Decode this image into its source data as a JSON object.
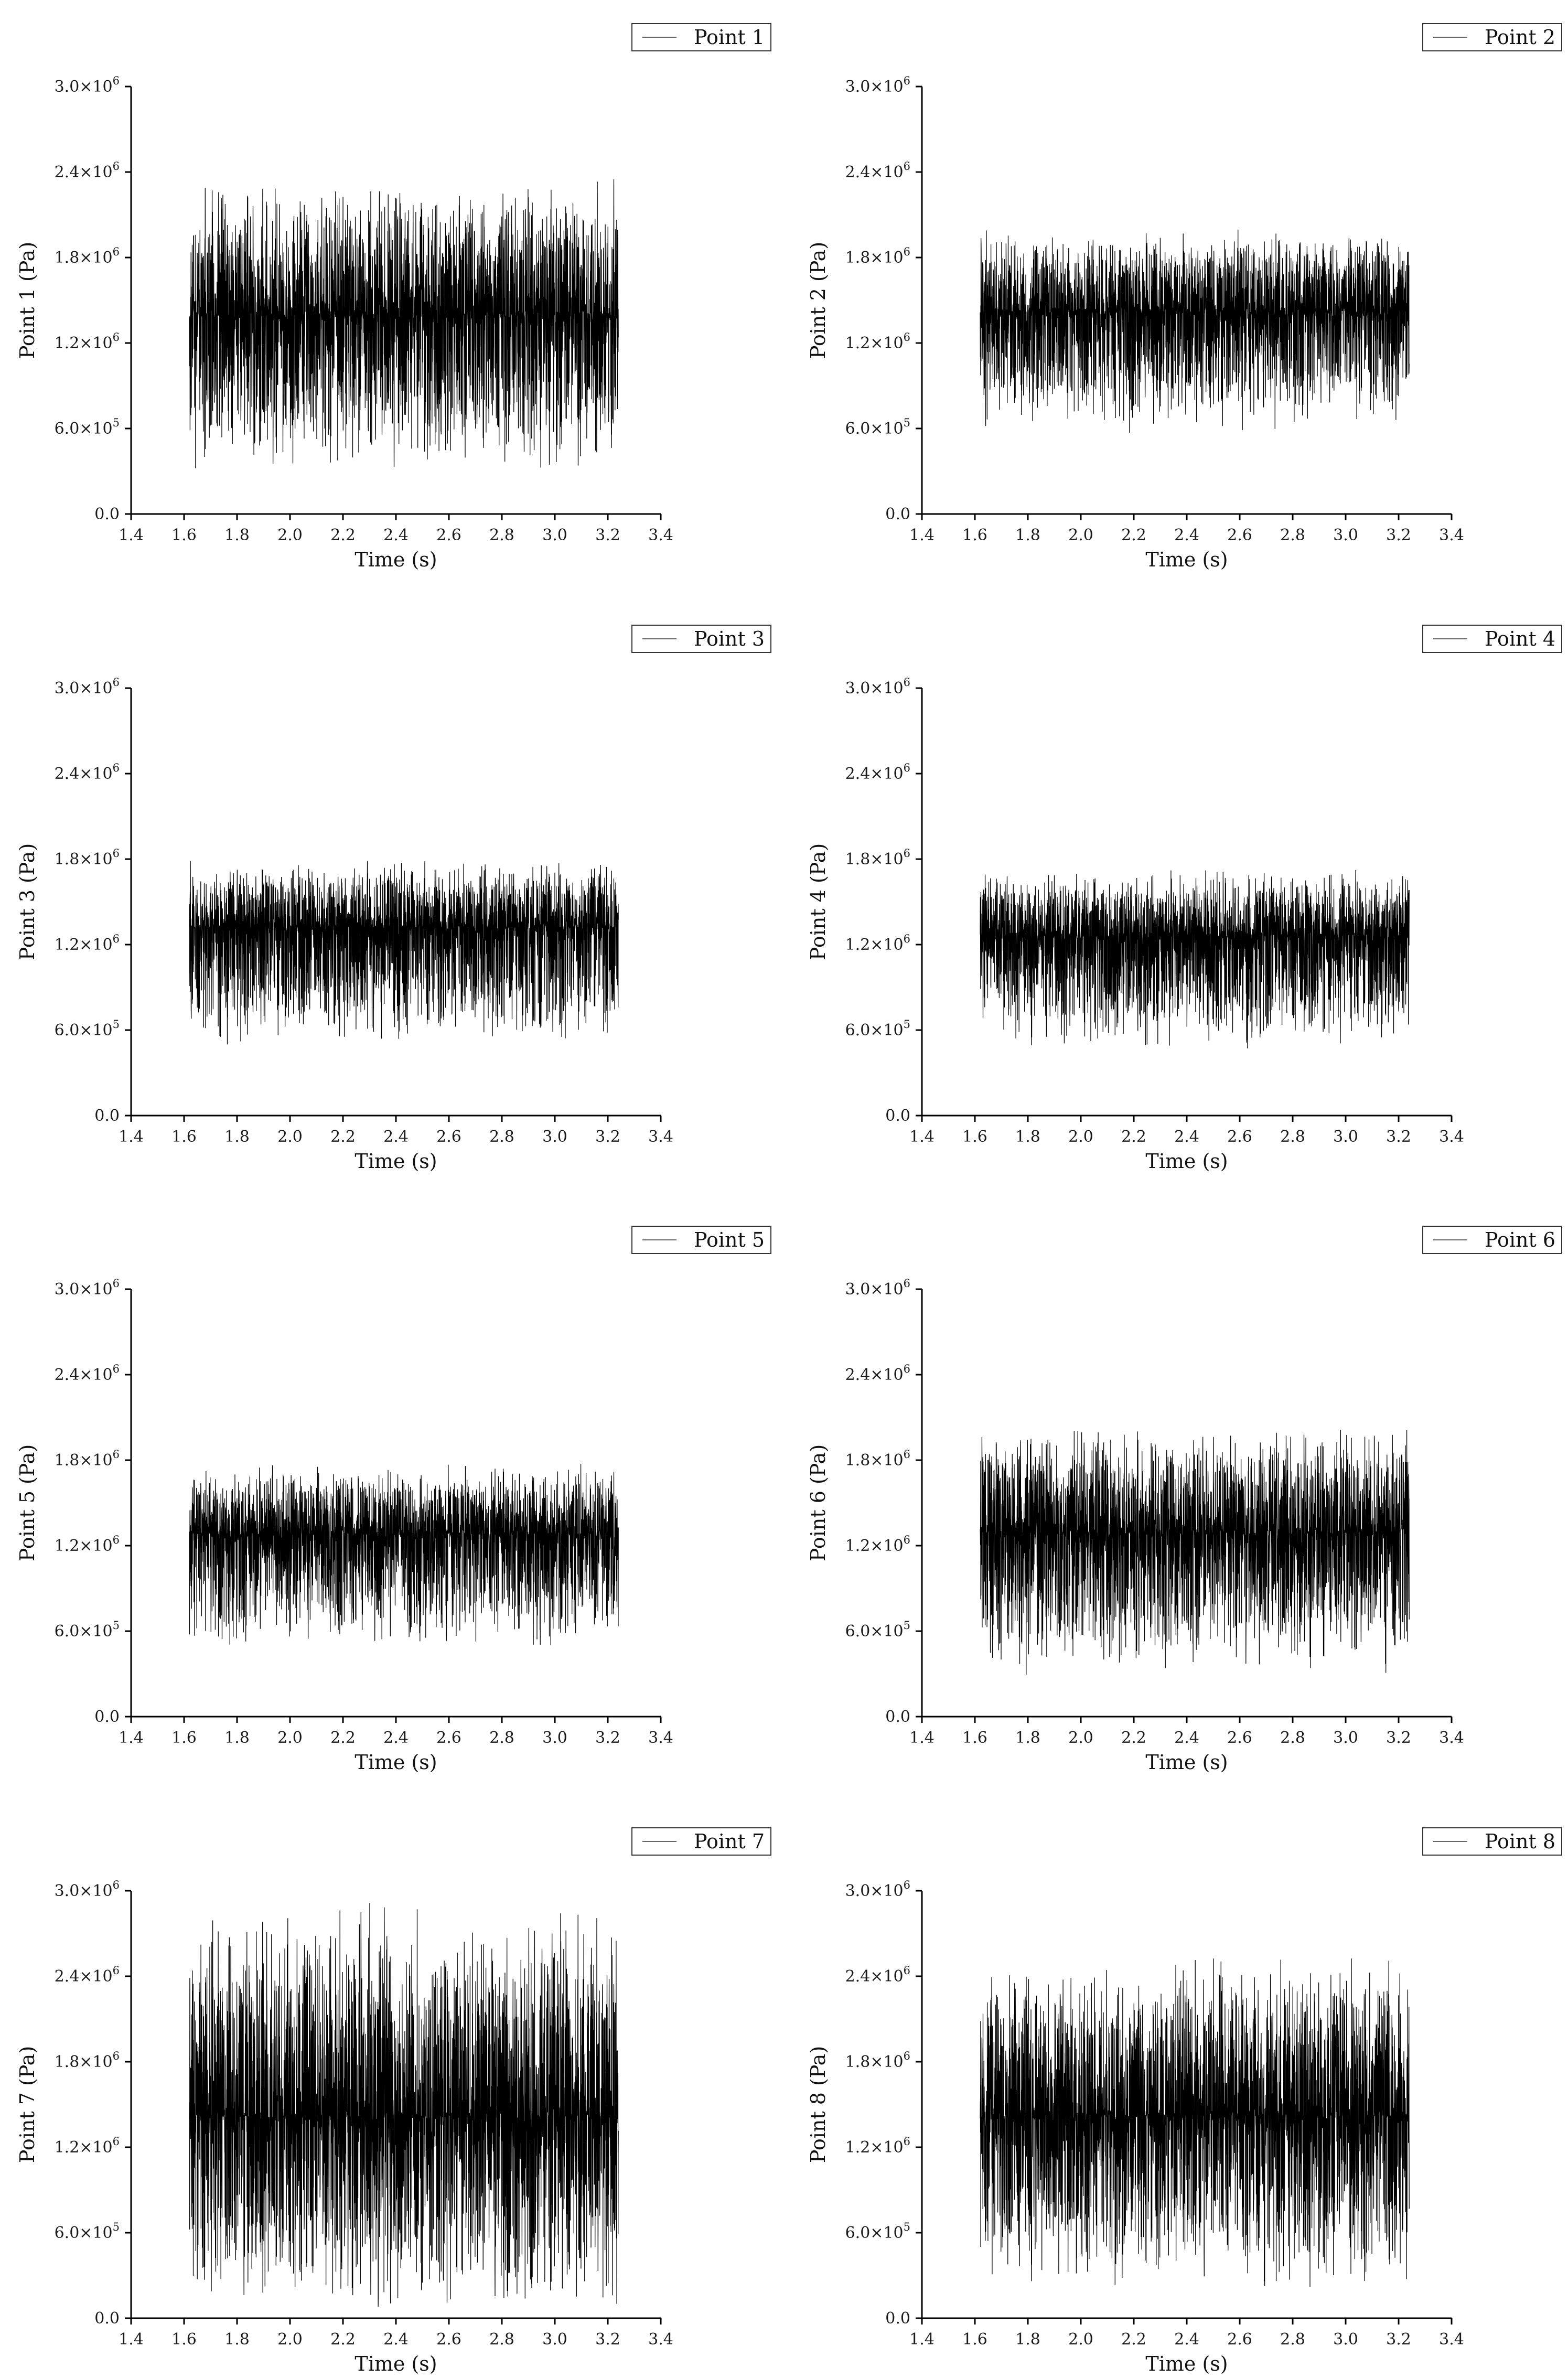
{
  "chart_data": [
    {
      "type": "line",
      "panel": 1,
      "legend": "Point 1",
      "legend_position": "top-right",
      "xlabel": "Time (s)",
      "ylabel": "Point 1 (Pa)",
      "xlim": [
        1.4,
        3.4
      ],
      "ylim": [
        0,
        3000000
      ],
      "x_ticks": [
        "1.4",
        "1.6",
        "1.8",
        "2.0",
        "2.2",
        "2.4",
        "2.6",
        "2.8",
        "3.0",
        "3.2",
        "3.4"
      ],
      "y_ticks": [
        {
          "value": 0,
          "mantissa": "0.0",
          "exp": ""
        },
        {
          "value": 600000,
          "mantissa": "6.0×10",
          "exp": "5"
        },
        {
          "value": 1200000,
          "mantissa": "1.2×10",
          "exp": "6"
        },
        {
          "value": 1800000,
          "mantissa": "1.8×10",
          "exp": "6"
        },
        {
          "value": 2400000,
          "mantissa": "2.4×10",
          "exp": "6"
        },
        {
          "value": 3000000,
          "mantissa": "3.0×10",
          "exp": "6"
        }
      ],
      "series": [
        {
          "name": "Point 1",
          "x_range": [
            1.62,
            3.24
          ],
          "mean": 1400000,
          "envelope_max": 2350000,
          "envelope_min": 280000
        }
      ]
    },
    {
      "type": "line",
      "panel": 2,
      "legend": "Point 2",
      "legend_position": "top-right",
      "xlabel": "Time (s)",
      "ylabel": "Point 2 (Pa)",
      "xlim": [
        1.4,
        3.4
      ],
      "ylim": [
        0,
        3000000
      ],
      "x_ticks": [
        "1.4",
        "1.6",
        "1.8",
        "2.0",
        "2.2",
        "2.4",
        "2.6",
        "2.8",
        "3.0",
        "3.2",
        "3.4"
      ],
      "y_ticks": [
        {
          "value": 0,
          "mantissa": "0.0",
          "exp": ""
        },
        {
          "value": 600000,
          "mantissa": "6.0×10",
          "exp": "5"
        },
        {
          "value": 1200000,
          "mantissa": "1.2×10",
          "exp": "6"
        },
        {
          "value": 1800000,
          "mantissa": "1.8×10",
          "exp": "6"
        },
        {
          "value": 2400000,
          "mantissa": "2.4×10",
          "exp": "6"
        },
        {
          "value": 3000000,
          "mantissa": "3.0×10",
          "exp": "6"
        }
      ],
      "series": [
        {
          "name": "Point 2",
          "x_range": [
            1.62,
            3.24
          ],
          "mean": 1420000,
          "envelope_max": 2000000,
          "envelope_min": 560000
        }
      ]
    },
    {
      "type": "line",
      "panel": 3,
      "legend": "Point 3",
      "legend_position": "top-right",
      "xlabel": "Time (s)",
      "ylabel": "Point 3 (Pa)",
      "xlim": [
        1.4,
        3.4
      ],
      "ylim": [
        0,
        3000000
      ],
      "x_ticks": [
        "1.4",
        "1.6",
        "1.8",
        "2.0",
        "2.2",
        "2.4",
        "2.6",
        "2.8",
        "3.0",
        "3.2",
        "3.4"
      ],
      "y_ticks": [
        {
          "value": 0,
          "mantissa": "0.0",
          "exp": ""
        },
        {
          "value": 600000,
          "mantissa": "6.0×10",
          "exp": "5"
        },
        {
          "value": 1200000,
          "mantissa": "1.2×10",
          "exp": "6"
        },
        {
          "value": 1800000,
          "mantissa": "1.8×10",
          "exp": "6"
        },
        {
          "value": 2400000,
          "mantissa": "2.4×10",
          "exp": "6"
        },
        {
          "value": 3000000,
          "mantissa": "3.0×10",
          "exp": "6"
        }
      ],
      "series": [
        {
          "name": "Point 3",
          "x_range": [
            1.62,
            3.24
          ],
          "mean": 1320000,
          "envelope_max": 1800000,
          "envelope_min": 480000
        }
      ]
    },
    {
      "type": "line",
      "panel": 4,
      "legend": "Point 4",
      "legend_position": "top-right",
      "xlabel": "Time (s)",
      "ylabel": "Point 4 (Pa)",
      "xlim": [
        1.4,
        3.4
      ],
      "ylim": [
        0,
        3000000
      ],
      "x_ticks": [
        "1.4",
        "1.6",
        "1.8",
        "2.0",
        "2.2",
        "2.4",
        "2.6",
        "2.8",
        "3.0",
        "3.2",
        "3.4"
      ],
      "y_ticks": [
        {
          "value": 0,
          "mantissa": "0.0",
          "exp": ""
        },
        {
          "value": 600000,
          "mantissa": "6.0×10",
          "exp": "5"
        },
        {
          "value": 1200000,
          "mantissa": "1.2×10",
          "exp": "6"
        },
        {
          "value": 1800000,
          "mantissa": "1.8×10",
          "exp": "6"
        },
        {
          "value": 2400000,
          "mantissa": "2.4×10",
          "exp": "6"
        },
        {
          "value": 3000000,
          "mantissa": "3.0×10",
          "exp": "6"
        }
      ],
      "series": [
        {
          "name": "Point 4",
          "x_range": [
            1.62,
            3.24
          ],
          "mean": 1260000,
          "envelope_max": 1740000,
          "envelope_min": 440000
        }
      ]
    },
    {
      "type": "line",
      "panel": 5,
      "legend": "Point 5",
      "legend_position": "top-right",
      "xlabel": "Time (s)",
      "ylabel": "Point 5 (Pa)",
      "xlim": [
        1.4,
        3.4
      ],
      "ylim": [
        0,
        3000000
      ],
      "x_ticks": [
        "1.4",
        "1.6",
        "1.8",
        "2.0",
        "2.2",
        "2.4",
        "2.6",
        "2.8",
        "3.0",
        "3.2",
        "3.4"
      ],
      "y_ticks": [
        {
          "value": 0,
          "mantissa": "0.0",
          "exp": ""
        },
        {
          "value": 600000,
          "mantissa": "6.0×10",
          "exp": "5"
        },
        {
          "value": 1200000,
          "mantissa": "1.2×10",
          "exp": "6"
        },
        {
          "value": 1800000,
          "mantissa": "1.8×10",
          "exp": "6"
        },
        {
          "value": 2400000,
          "mantissa": "2.4×10",
          "exp": "6"
        },
        {
          "value": 3000000,
          "mantissa": "3.0×10",
          "exp": "6"
        }
      ],
      "series": [
        {
          "name": "Point 5",
          "x_range": [
            1.62,
            3.24
          ],
          "mean": 1280000,
          "envelope_max": 1780000,
          "envelope_min": 470000
        }
      ]
    },
    {
      "type": "line",
      "panel": 6,
      "legend": "Point 6",
      "legend_position": "top-right",
      "xlabel": "Time (s)",
      "ylabel": "Point 6 (Pa)",
      "xlim": [
        1.4,
        3.4
      ],
      "ylim": [
        0,
        3000000
      ],
      "x_ticks": [
        "1.4",
        "1.6",
        "1.8",
        "2.0",
        "2.2",
        "2.4",
        "2.6",
        "2.8",
        "3.0",
        "3.2",
        "3.4"
      ],
      "y_ticks": [
        {
          "value": 0,
          "mantissa": "0.0",
          "exp": ""
        },
        {
          "value": 600000,
          "mantissa": "6.0×10",
          "exp": "5"
        },
        {
          "value": 1200000,
          "mantissa": "1.2×10",
          "exp": "6"
        },
        {
          "value": 1800000,
          "mantissa": "1.8×10",
          "exp": "6"
        },
        {
          "value": 2400000,
          "mantissa": "2.4×10",
          "exp": "6"
        },
        {
          "value": 3000000,
          "mantissa": "3.0×10",
          "exp": "6"
        }
      ],
      "series": [
        {
          "name": "Point 6",
          "x_range": [
            1.62,
            3.24
          ],
          "mean": 1290000,
          "envelope_max": 2040000,
          "envelope_min": 270000
        }
      ]
    },
    {
      "type": "line",
      "panel": 7,
      "legend": "Point 7",
      "legend_position": "top-right",
      "xlabel": "Time (s)",
      "ylabel": "Point 7 (Pa)",
      "xlim": [
        1.4,
        3.4
      ],
      "ylim": [
        0,
        3000000
      ],
      "x_ticks": [
        "1.4",
        "1.6",
        "1.8",
        "2.0",
        "2.2",
        "2.4",
        "2.6",
        "2.8",
        "3.0",
        "3.2",
        "3.4"
      ],
      "y_ticks": [
        {
          "value": 0,
          "mantissa": "0.0",
          "exp": ""
        },
        {
          "value": 600000,
          "mantissa": "6.0×10",
          "exp": "5"
        },
        {
          "value": 1200000,
          "mantissa": "1.2×10",
          "exp": "6"
        },
        {
          "value": 1800000,
          "mantissa": "1.8×10",
          "exp": "6"
        },
        {
          "value": 2400000,
          "mantissa": "2.4×10",
          "exp": "6"
        },
        {
          "value": 3000000,
          "mantissa": "3.0×10",
          "exp": "6"
        }
      ],
      "series": [
        {
          "name": "Point 7",
          "x_range": [
            1.62,
            3.24
          ],
          "mean": 1420000,
          "envelope_max": 2950000,
          "envelope_min": 10000
        }
      ]
    },
    {
      "type": "line",
      "panel": 8,
      "legend": "Point 8",
      "legend_position": "top-right",
      "xlabel": "Time (s)",
      "ylabel": "Point 8 (Pa)",
      "xlim": [
        1.4,
        3.4
      ],
      "ylim": [
        0,
        3000000
      ],
      "x_ticks": [
        "1.4",
        "1.6",
        "1.8",
        "2.0",
        "2.2",
        "2.4",
        "2.6",
        "2.8",
        "3.0",
        "3.2",
        "3.4"
      ],
      "y_ticks": [
        {
          "value": 0,
          "mantissa": "0.0",
          "exp": ""
        },
        {
          "value": 600000,
          "mantissa": "6.0×10",
          "exp": "5"
        },
        {
          "value": 1200000,
          "mantissa": "1.2×10",
          "exp": "6"
        },
        {
          "value": 1800000,
          "mantissa": "1.8×10",
          "exp": "6"
        },
        {
          "value": 2400000,
          "mantissa": "2.4×10",
          "exp": "6"
        },
        {
          "value": 3000000,
          "mantissa": "3.0×10",
          "exp": "6"
        }
      ],
      "series": [
        {
          "name": "Point 8",
          "x_range": [
            1.62,
            3.24
          ],
          "mean": 1420000,
          "envelope_max": 2560000,
          "envelope_min": 180000
        }
      ]
    }
  ],
  "colors": {
    "signal": "#000000",
    "axis": "#000000",
    "legend_swatch": "#666666",
    "background": "#ffffff"
  }
}
